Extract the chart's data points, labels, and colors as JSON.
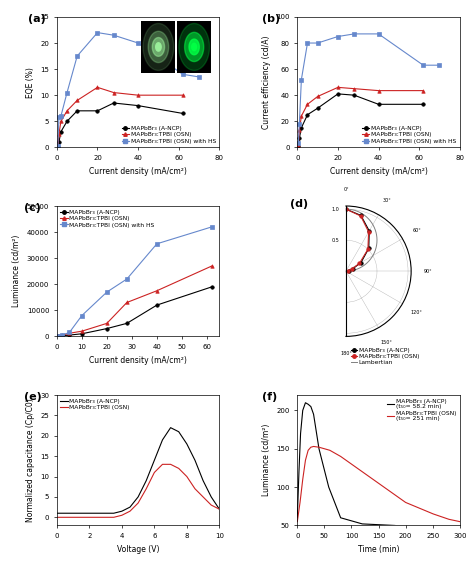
{
  "panel_a": {
    "xlabel": "Current density (mA/cm²)",
    "ylabel": "EQE (%)",
    "ylim": [
      0,
      25
    ],
    "xlim": [
      0,
      80
    ],
    "series": [
      {
        "label": "MAPbBr₃ (A-NCP)",
        "color": "black",
        "marker": "o",
        "x": [
          0.5,
          1,
          2,
          5,
          10,
          20,
          28,
          40,
          62
        ],
        "y": [
          0.1,
          1.0,
          3.0,
          5.0,
          7.0,
          7.0,
          8.5,
          8.0,
          6.5
        ]
      },
      {
        "label": "MAPbBr₃:TPBI (OSN)",
        "color": "#cc2222",
        "marker": "^",
        "x": [
          0.5,
          1,
          2,
          5,
          10,
          20,
          28,
          40,
          62
        ],
        "y": [
          0.2,
          2.5,
          5.0,
          7.0,
          9.0,
          11.5,
          10.5,
          10.0,
          10.0
        ]
      },
      {
        "label": "MAPbBr₃:TPBI (OSN) with HS",
        "color": "#6688cc",
        "marker": "s",
        "x": [
          0.5,
          1,
          2,
          5,
          10,
          20,
          28,
          40,
          62,
          70
        ],
        "y": [
          0.3,
          5.8,
          6.0,
          10.5,
          17.5,
          22.0,
          21.5,
          20.0,
          14.0,
          13.5
        ]
      }
    ]
  },
  "panel_b": {
    "xlabel": "Current density (mA/cm²)",
    "ylabel": "Current efficiency (cd/A)",
    "ylim": [
      0,
      100
    ],
    "xlim": [
      0,
      80
    ],
    "series": [
      {
        "label": "MAPbBr₃ (A-NCP)",
        "color": "black",
        "marker": "o",
        "x": [
          0.5,
          1,
          2,
          5,
          10,
          20,
          28,
          40,
          62
        ],
        "y": [
          1.0,
          7.0,
          15.0,
          25.0,
          30.0,
          41.0,
          40.0,
          33.0,
          33.0
        ]
      },
      {
        "label": "MAPbBr₃:TPBI (OSN)",
        "color": "#cc2222",
        "marker": "^",
        "x": [
          0.5,
          1,
          2,
          5,
          10,
          20,
          28,
          40,
          62
        ],
        "y": [
          2.0,
          13.0,
          24.0,
          33.0,
          39.0,
          46.0,
          45.0,
          43.5,
          43.5
        ]
      },
      {
        "label": "MAPbBr₃:TPBI (OSN) with HS",
        "color": "#6688cc",
        "marker": "s",
        "x": [
          0.5,
          1,
          2,
          5,
          10,
          20,
          28,
          40,
          62,
          70
        ],
        "y": [
          3.0,
          18.0,
          52.0,
          80.0,
          80.0,
          85.0,
          87.0,
          87.0,
          63.0,
          63.0
        ]
      }
    ]
  },
  "panel_c": {
    "xlabel": "Current density (mA/cm²)",
    "ylabel": "Luminance (cd/m²)",
    "ylim": [
      0,
      50000
    ],
    "xlim": [
      0,
      65
    ],
    "yticks": [
      0,
      10000,
      20000,
      30000,
      40000,
      50000
    ],
    "series": [
      {
        "label": "MAPbBr₃ (A-NCP)",
        "color": "black",
        "marker": "o",
        "x": [
          0.5,
          2,
          5,
          10,
          20,
          28,
          40,
          62
        ],
        "y": [
          50,
          200,
          500,
          1000,
          3000,
          5000,
          12000,
          19000
        ]
      },
      {
        "label": "MAPbBr₃:TPBI (OSN)",
        "color": "#cc2222",
        "marker": "^",
        "x": [
          0.5,
          2,
          5,
          10,
          20,
          28,
          40,
          62
        ],
        "y": [
          80,
          400,
          1200,
          2000,
          5000,
          13000,
          17500,
          27000
        ]
      },
      {
        "label": "MAPbBr₃:TPBI (OSN) with HS",
        "color": "#6688cc",
        "marker": "s",
        "x": [
          0.5,
          2,
          5,
          10,
          20,
          28,
          40,
          62
        ],
        "y": [
          100,
          500,
          1500,
          8000,
          17000,
          22000,
          35500,
          42000
        ]
      }
    ]
  },
  "panel_d": {
    "ancp_angles_deg": [
      -80,
      -70,
      -60,
      -45,
      -30,
      -15,
      0,
      15,
      30,
      45,
      60,
      70,
      80
    ],
    "ancp_r": [
      0.05,
      0.12,
      0.28,
      0.52,
      0.75,
      0.93,
      1.0,
      0.93,
      0.75,
      0.52,
      0.28,
      0.12,
      0.05
    ],
    "osn_angles_deg": [
      -80,
      -70,
      -60,
      -45,
      -30,
      -15,
      0,
      15,
      30,
      45,
      60,
      70,
      80
    ],
    "osn_r": [
      0.04,
      0.1,
      0.25,
      0.5,
      0.73,
      0.92,
      1.0,
      0.92,
      0.73,
      0.5,
      0.25,
      0.1,
      0.04
    ],
    "color_ancp": "black",
    "color_osn": "#cc2222",
    "color_lambertian": "gray"
  },
  "panel_e": {
    "xlabel": "Voltage (V)",
    "ylabel": "Normalized capacitance (Cp/C0)",
    "xlim": [
      0,
      10
    ],
    "ylim": [
      -2,
      30
    ],
    "series": [
      {
        "label": "MAPbBr₃ (A-NCP)",
        "color": "black",
        "x": [
          0,
          0.5,
          1,
          1.5,
          2,
          2.5,
          3,
          3.5,
          4,
          4.5,
          5,
          5.5,
          6,
          6.5,
          7,
          7.5,
          8,
          8.5,
          9,
          9.5,
          10
        ],
        "y": [
          1,
          1,
          1,
          1,
          1,
          1,
          1,
          1,
          1.5,
          2.5,
          5,
          9,
          14,
          19,
          22,
          21,
          18,
          14,
          9,
          5,
          2
        ]
      },
      {
        "label": "MAPbBr₃:TPBI (OSN)",
        "color": "#cc2222",
        "x": [
          0,
          0.5,
          1,
          1.5,
          2,
          2.5,
          3,
          3.5,
          4,
          4.5,
          5,
          5.5,
          6,
          6.5,
          7,
          7.5,
          8,
          8.5,
          9,
          9.5,
          10
        ],
        "y": [
          0,
          0,
          0,
          0,
          0,
          0,
          0,
          0,
          0.5,
          1.5,
          3.5,
          7,
          11,
          13,
          13,
          12,
          10,
          7,
          5,
          3,
          2
        ]
      }
    ]
  },
  "panel_f": {
    "xlabel": "Time (min)",
    "ylabel": "Luminance (cd/m²)",
    "xlim": [
      0,
      300
    ],
    "ylim": [
      50,
      220
    ],
    "yticks": [
      50,
      100,
      150,
      200
    ],
    "xticks": [
      0,
      50,
      100,
      150,
      200,
      250,
      300
    ],
    "series": [
      {
        "label": "MAPbBr₃ (A-NCP)\n(t₅₀= 58.2 min)",
        "color": "black",
        "x": [
          0,
          3,
          6,
          10,
          15,
          20,
          25,
          30,
          40,
          58,
          80,
          120,
          180
        ],
        "y": [
          60,
          120,
          170,
          200,
          210,
          208,
          205,
          195,
          150,
          100,
          60,
          52,
          50
        ]
      },
      {
        "label": "MAPbBr₃:TPBI (OSN)\n(t₅₀= 251 min)",
        "color": "#cc2222",
        "x": [
          0,
          5,
          10,
          15,
          20,
          25,
          30,
          40,
          60,
          80,
          100,
          130,
          160,
          200,
          251,
          280,
          300
        ],
        "y": [
          55,
          80,
          110,
          135,
          148,
          152,
          153,
          152,
          148,
          140,
          130,
          115,
          100,
          80,
          65,
          58,
          55
        ]
      }
    ]
  }
}
